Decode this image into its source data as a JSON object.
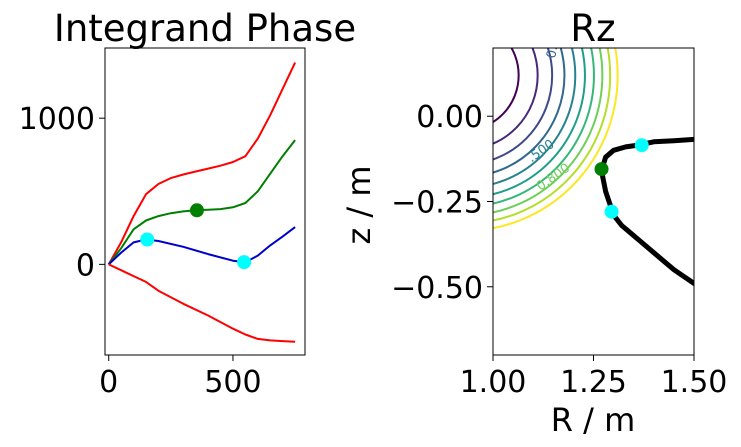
{
  "chart_data": [
    {
      "type": "line",
      "title": "Integrand Phase",
      "xlabel": "",
      "ylabel": "",
      "xlim": [
        -15,
        790
      ],
      "ylim": [
        -620,
        1480
      ],
      "xticks": [
        0,
        500
      ],
      "xtick_labels": [
        "0",
        "500"
      ],
      "yticks": [
        0,
        1000
      ],
      "ytick_labels": [
        "0",
        "1000"
      ],
      "grid": false,
      "series": [
        {
          "color": "#ff0000",
          "x": [
            0,
            50,
            100,
            150,
            200,
            250,
            300,
            350,
            400,
            450,
            500,
            550,
            600,
            650,
            700,
            750
          ],
          "y": [
            0,
            150,
            330,
            480,
            550,
            590,
            615,
            635,
            655,
            675,
            700,
            740,
            860,
            1020,
            1200,
            1380
          ]
        },
        {
          "color": "#008000",
          "x": [
            0,
            50,
            100,
            150,
            200,
            250,
            300,
            350,
            400,
            450,
            500,
            550,
            600,
            650,
            700,
            750
          ],
          "y": [
            0,
            110,
            240,
            300,
            330,
            350,
            362,
            370,
            373,
            378,
            390,
            420,
            500,
            620,
            740,
            850
          ]
        },
        {
          "color": "#0000cd",
          "x": [
            0,
            50,
            100,
            150,
            200,
            300,
            400,
            500,
            550,
            600,
            650,
            700,
            750
          ],
          "y": [
            0,
            80,
            150,
            170,
            160,
            120,
            70,
            25,
            15,
            60,
            130,
            190,
            255
          ]
        },
        {
          "color": "#ff0000",
          "x": [
            0,
            50,
            100,
            150,
            200,
            300,
            400,
            500,
            550,
            600,
            650,
            700,
            750
          ],
          "y": [
            0,
            -40,
            -80,
            -120,
            -180,
            -270,
            -350,
            -440,
            -480,
            -510,
            -520,
            -525,
            -530
          ]
        }
      ],
      "markers": [
        {
          "color": "#008000",
          "x": 355,
          "y": 370
        },
        {
          "color": "#00ffff",
          "x": 155,
          "y": 170
        },
        {
          "color": "#00ffff",
          "x": 545,
          "y": 15
        }
      ]
    },
    {
      "type": "contour",
      "title": "Rz",
      "xlabel": "R / m",
      "ylabel": "z / m",
      "xlim": [
        1.0,
        1.5
      ],
      "ylim": [
        -0.7,
        0.2
      ],
      "xticks": [
        1.0,
        1.25,
        1.5
      ],
      "xtick_labels": [
        "1.00",
        "1.25",
        "1.50"
      ],
      "yticks": [
        0.0,
        -0.25,
        -0.5
      ],
      "ytick_labels": [
        "0.00",
        "−0.25",
        "−0.50"
      ],
      "grid": false,
      "contour_levels": [
        {
          "value": 0.1,
          "color": "#440154"
        },
        {
          "value": 0.2,
          "color": "#482878"
        },
        {
          "value": 0.3,
          "color": "#3e4989"
        },
        {
          "value": 0.4,
          "color": "#31688e"
        },
        {
          "value": 0.5,
          "color": "#26828e"
        },
        {
          "value": 0.6,
          "color": "#1f9e89"
        },
        {
          "value": 0.7,
          "color": "#35b779"
        },
        {
          "value": 0.8,
          "color": "#6ece58"
        },
        {
          "value": 0.9,
          "color": "#b5de2b"
        },
        {
          "value": 1.0,
          "color": "#fde725"
        }
      ],
      "contour_labels": [
        {
          "text": "0.400",
          "value": 0.4,
          "color": "#31688e"
        },
        {
          "text": ".500",
          "value": 0.5,
          "color": "#26828e"
        },
        {
          "text": "0.800",
          "value": 0.8,
          "color": "#6ece58"
        }
      ],
      "trajectory": {
        "color": "#000000",
        "branch_a": {
          "x": [
            1.27,
            1.28,
            1.3,
            1.33,
            1.36,
            1.4,
            1.45,
            1.5
          ],
          "y": [
            -0.16,
            -0.12,
            -0.1,
            -0.09,
            -0.085,
            -0.075,
            -0.072,
            -0.068
          ]
        },
        "branch_b": {
          "x": [
            1.27,
            1.28,
            1.3,
            1.32,
            1.36,
            1.4,
            1.45,
            1.5
          ],
          "y": [
            -0.16,
            -0.22,
            -0.29,
            -0.32,
            -0.36,
            -0.4,
            -0.45,
            -0.49
          ]
        }
      },
      "markers": [
        {
          "color": "#008000",
          "x": 1.27,
          "y": -0.155
        },
        {
          "color": "#00ffff",
          "x": 1.37,
          "y": -0.085
        },
        {
          "color": "#00ffff",
          "x": 1.295,
          "y": -0.28
        }
      ]
    }
  ]
}
